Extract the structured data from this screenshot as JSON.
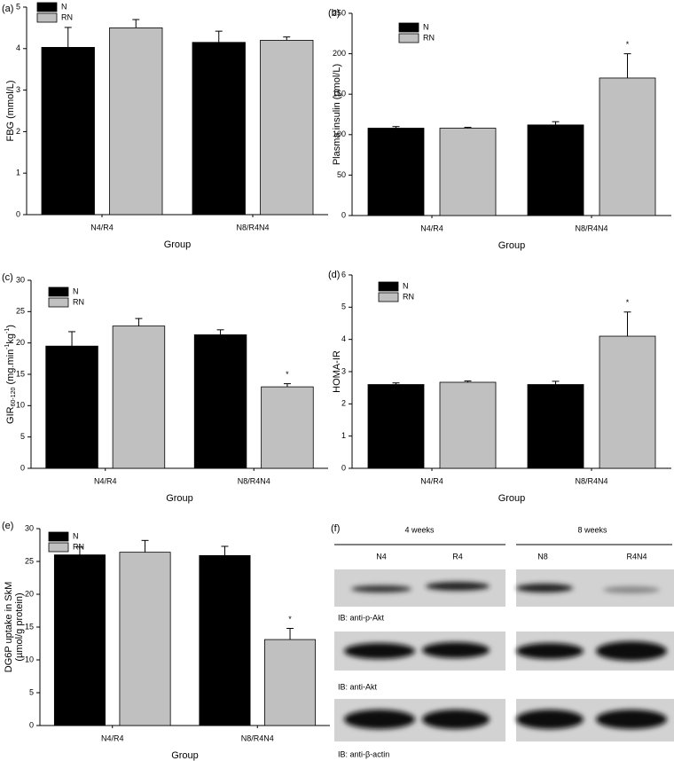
{
  "chart_data": [
    {
      "type": "bar",
      "label": "(a)",
      "y_label": "FBG (mmol/L)",
      "x_label": "Group",
      "categories": [
        "N4/R4",
        "N8/R4N4"
      ],
      "series": [
        {
          "name": "N",
          "color": "#000000",
          "values": [
            4.03,
            4.15
          ],
          "errors": [
            0.48,
            0.27
          ]
        },
        {
          "name": "RN",
          "color": "#c0c0c0",
          "values": [
            4.5,
            4.2
          ],
          "errors": [
            0.2,
            0.08
          ]
        }
      ],
      "ylim": [
        0,
        5
      ],
      "yticks": [
        0,
        1,
        2,
        3,
        4,
        5
      ],
      "legend": "upper left"
    },
    {
      "type": "bar",
      "label": "(b)",
      "y_label": "Plasma insulin (pmol/L)",
      "x_label": "Group",
      "categories": [
        "N4/R4",
        "N8/R4N4"
      ],
      "series": [
        {
          "name": "N",
          "color": "#000000",
          "values": [
            108,
            112
          ],
          "errors": [
            2,
            4
          ]
        },
        {
          "name": "RN",
          "color": "#c0c0c0",
          "values": [
            108,
            170
          ],
          "errors": [
            1,
            30
          ],
          "marks": [
            null,
            "*"
          ]
        }
      ],
      "ylim": [
        0,
        250
      ],
      "yticks": [
        0,
        50,
        100,
        150,
        200,
        250
      ],
      "legend": "upper left"
    },
    {
      "type": "bar",
      "label": "(c)",
      "y_label_parts": [
        "GIR",
        "60-120",
        " (mg.min",
        "-1",
        "kg",
        "-1",
        ")"
      ],
      "x_label": "Group",
      "categories": [
        "N4/R4",
        "N8/R4N4"
      ],
      "series": [
        {
          "name": "N",
          "color": "#000000",
          "values": [
            19.5,
            21.3
          ],
          "errors": [
            2.3,
            0.8
          ]
        },
        {
          "name": "RN",
          "color": "#c0c0c0",
          "values": [
            22.7,
            13
          ],
          "errors": [
            1.2,
            0.5
          ],
          "marks": [
            null,
            "*"
          ]
        }
      ],
      "ylim": [
        0,
        30
      ],
      "yticks": [
        0,
        5,
        10,
        15,
        20,
        25,
        30
      ],
      "legend": "upper left"
    },
    {
      "type": "bar",
      "label": "(d)",
      "y_label": "HOMA-IR",
      "x_label": "Group",
      "categories": [
        "N4/R4",
        "N8/R4N4"
      ],
      "series": [
        {
          "name": "N",
          "color": "#000000",
          "values": [
            2.6,
            2.6
          ],
          "errors": [
            0.05,
            0.1
          ]
        },
        {
          "name": "RN",
          "color": "#c0c0c0",
          "values": [
            2.67,
            4.1
          ],
          "errors": [
            0.04,
            0.75
          ],
          "marks": [
            null,
            "*"
          ]
        }
      ],
      "ylim": [
        0,
        6
      ],
      "yticks": [
        0,
        1,
        2,
        3,
        4,
        5,
        6
      ],
      "legend": "upper left"
    },
    {
      "type": "bar",
      "label": "(e)",
      "y_label_lines": [
        "DG6P uptake in SkM",
        "(µmol/g protein)"
      ],
      "x_label": "Group",
      "categories": [
        "N4/R4",
        "N8/R4N4"
      ],
      "series": [
        {
          "name": "N",
          "color": "#000000",
          "values": [
            26,
            25.9
          ],
          "errors": [
            1.2,
            1.4
          ]
        },
        {
          "name": "RN",
          "color": "#c0c0c0",
          "values": [
            26.4,
            13.1
          ],
          "errors": [
            1.8,
            1.7
          ],
          "marks": [
            null,
            "*"
          ]
        }
      ],
      "ylim": [
        0,
        30
      ],
      "yticks": [
        0,
        5,
        10,
        15,
        20,
        25,
        30
      ],
      "legend": "upper left"
    }
  ],
  "blot": {
    "label": "(f)",
    "periods": [
      "4 weeks",
      "8 weeks"
    ],
    "lanes": [
      "N4",
      "R4",
      "N8",
      "R4N4"
    ],
    "blots": [
      "IB: anti-p-Akt",
      "IB: anti-Akt",
      "IB: anti-β-actin"
    ]
  }
}
